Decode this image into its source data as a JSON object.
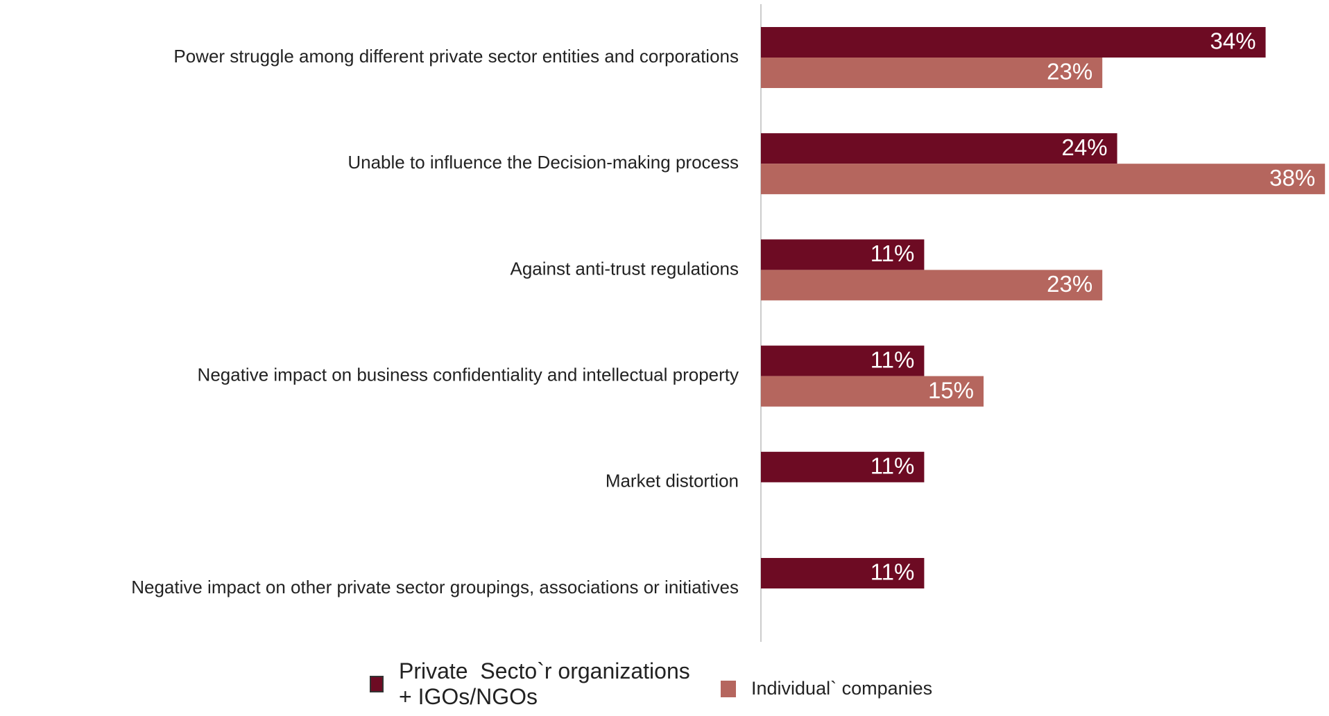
{
  "chart_data": {
    "type": "hbar",
    "categories": [
      "Power struggle among different private sector entities and corporations",
      "Unable to influence the Decision-making process",
      "Against anti-trust regulations",
      "Negative impact on business confidentiality and intellectual property",
      "Market distortion",
      "Negative impact on other private sector groupings, associations or initiatives"
    ],
    "series": [
      {
        "name": "Private  Secto`r organizations + IGOs/NGOs",
        "color": "#6d0b23",
        "values": [
          34,
          24,
          11,
          11,
          11,
          11
        ],
        "value_labels": [
          "34%",
          "24%",
          "11%",
          "11%",
          "11%",
          "11%"
        ]
      },
      {
        "name": "Individual` companies",
        "color": "#b5665e",
        "values": [
          23,
          38,
          23,
          15,
          null,
          null
        ],
        "value_labels": [
          "23%",
          "38%",
          "23%",
          "15%",
          null,
          null
        ]
      }
    ]
  }
}
